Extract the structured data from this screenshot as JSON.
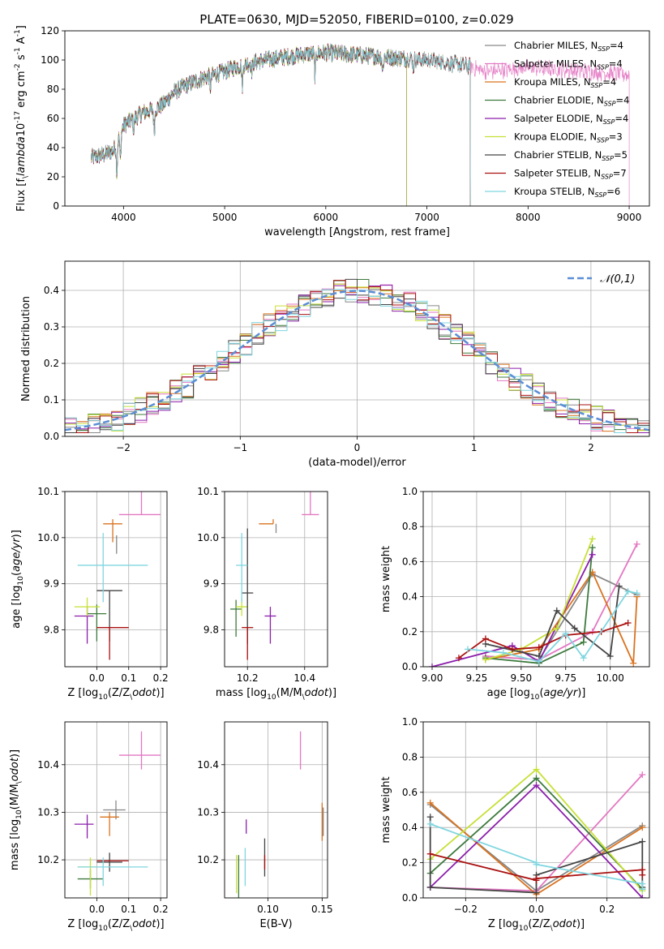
{
  "figure": {
    "title": "PLATE=0630, MJD=52050, FIBERID=0100, z=0.029"
  },
  "series_styles": [
    {
      "name": "Chabrier MILES, N$_{SSP}$=4",
      "base": "Chabrier MILES, N",
      "sub": "SSP",
      "tail": "=4",
      "color": "#888888"
    },
    {
      "name": "Salpeter MILES, N$_{SSP}$=4",
      "base": "Salpeter MILES, N",
      "sub": "SSP",
      "tail": "=4",
      "color": "#e377c2"
    },
    {
      "name": "Kroupa MILES, N$_{SSP}$=4",
      "base": "Kroupa MILES, N",
      "sub": "SSP",
      "tail": "=4",
      "color": "#d9731f"
    },
    {
      "name": "Chabrier ELODIE, N$_{SSP}$=4",
      "base": "Chabrier ELODIE, N",
      "sub": "SSP",
      "tail": "=4",
      "color": "#3d7a3d"
    },
    {
      "name": "Salpeter ELODIE, N$_{SSP}$=4",
      "base": "Salpeter ELODIE, N",
      "sub": "SSP",
      "tail": "=4",
      "color": "#8b1eab"
    },
    {
      "name": "Kroupa ELODIE, N$_{SSP}$=3",
      "base": "Kroupa ELODIE, N",
      "sub": "SSP",
      "tail": "=3",
      "color": "#c7e036"
    },
    {
      "name": "Chabrier STELIB, N$_{SSP}$=5",
      "base": "Chabrier STELIB, N",
      "sub": "SSP",
      "tail": "=5",
      "color": "#444444"
    },
    {
      "name": "Salpeter STELIB, N$_{SSP}$=7",
      "base": "Salpeter STELIB, N",
      "sub": "SSP",
      "tail": "=7",
      "color": "#aa1111"
    },
    {
      "name": "Kroupa STELIB, N$_{SSP}$=6",
      "base": "Kroupa STELIB, N",
      "sub": "SSP",
      "tail": "=6",
      "color": "#7fd6e0"
    }
  ],
  "chart_data": [
    {
      "id": "spectrum",
      "type": "line",
      "title": "PLATE=0630, MJD=52050, FIBERID=0100, z=0.029",
      "xlabel": "wavelength [Angstrom, rest frame]",
      "ylabel": "Flux [f$_\\lambda$10$^{-17}$ erg cm$^{-2}$ s$^{-1}$ A$^{-1}$]",
      "xlim": [
        3420,
        9200
      ],
      "ylim": [
        0,
        120
      ],
      "xticks": [
        4000,
        5000,
        6000,
        7000,
        8000,
        9000
      ],
      "yticks": [
        0,
        20,
        40,
        60,
        80,
        100,
        120
      ],
      "grid": false,
      "legend_placement": "right",
      "continuum": [
        [
          3680,
          33
        ],
        [
          3800,
          35
        ],
        [
          3900,
          38
        ],
        [
          4000,
          55
        ],
        [
          4100,
          60
        ],
        [
          4200,
          64
        ],
        [
          4300,
          66
        ],
        [
          4400,
          70
        ],
        [
          4500,
          78
        ],
        [
          4600,
          82
        ],
        [
          4700,
          85
        ],
        [
          4800,
          88
        ],
        [
          4900,
          90
        ],
        [
          5000,
          92
        ],
        [
          5100,
          95
        ],
        [
          5200,
          97
        ],
        [
          5400,
          100
        ],
        [
          5600,
          102
        ],
        [
          5800,
          104
        ],
        [
          6000,
          105
        ],
        [
          6200,
          104
        ],
        [
          6400,
          103
        ],
        [
          6600,
          102
        ],
        [
          6800,
          101
        ],
        [
          7000,
          100
        ],
        [
          7200,
          98
        ],
        [
          7400,
          96
        ],
        [
          7600,
          92
        ],
        [
          8000,
          95
        ],
        [
          8400,
          93
        ],
        [
          9000,
          90
        ]
      ],
      "absorption_features": [
        [
          3934,
          20
        ],
        [
          3969,
          18
        ],
        [
          4102,
          8
        ],
        [
          4304,
          15
        ],
        [
          4861,
          8
        ],
        [
          5175,
          14
        ],
        [
          5270,
          6
        ],
        [
          5893,
          15
        ],
        [
          6563,
          10
        ],
        [
          6867,
          6
        ]
      ],
      "series_end_wavelength": [
        7430,
        9000,
        7430,
        6800,
        6800,
        6800,
        7430,
        7430,
        7430
      ]
    },
    {
      "id": "residual_hist",
      "type": "bar",
      "xlabel": "(data-model)/error",
      "ylabel": "Normed distribution",
      "xlim": [
        -2.5,
        2.5
      ],
      "ylim": [
        0,
        0.48
      ],
      "xticks": [
        -2,
        -1,
        0,
        1,
        2
      ],
      "yticks": [
        0.0,
        0.1,
        0.2,
        0.3,
        0.4
      ],
      "grid": true,
      "legend_placement": "top-right",
      "legend_label": "𝒩(0,1)",
      "reference_curve": {
        "name": "𝒩(0,1)",
        "mean": 0,
        "sigma": 1,
        "color": "#5b8ed6"
      },
      "bin_width": 0.1
    },
    {
      "id": "age_vs_Z",
      "type": "scatter",
      "xlabel": "Z [log$_{10}$(Z/Z$_\\odot$)]",
      "ylabel": "age  [log$_{10}$($age/yr$)]",
      "xlim": [
        -0.1,
        0.22
      ],
      "ylim": [
        9.72,
        10.1
      ],
      "xticks": [
        0.0,
        0.1,
        0.2
      ],
      "yticks": [
        9.8,
        9.9,
        10.0,
        10.1
      ],
      "grid": true,
      "points": [
        {
          "x": 0.062,
          "y": 9.985,
          "xerr": [
            0.0,
            0.0
          ],
          "yerr": [
            0.02,
            0.02
          ]
        },
        {
          "x": 0.14,
          "y": 10.05,
          "xerr": [
            0.07,
            0.06
          ],
          "yerr": [
            0.0,
            0.05
          ]
        },
        {
          "x": 0.05,
          "y": 10.03,
          "xerr": [
            0.03,
            0.03
          ],
          "yerr": [
            0.04,
            0.01
          ]
        },
        {
          "x": 0.0,
          "y": 9.835,
          "xerr": [
            0.03,
            0.03
          ],
          "yerr": [
            0.06,
            0.02
          ]
        },
        {
          "x": -0.03,
          "y": 9.83,
          "xerr": [
            0.04,
            0.02
          ],
          "yerr": [
            0.06,
            0.02
          ]
        },
        {
          "x": -0.03,
          "y": 9.85,
          "xerr": [
            0.04,
            0.04
          ],
          "yerr": [
            0.02,
            0.02
          ]
        },
        {
          "x": 0.04,
          "y": 9.885,
          "xerr": [
            0.04,
            0.04
          ],
          "yerr": [
            0.11,
            0.0
          ]
        },
        {
          "x": 0.04,
          "y": 9.805,
          "xerr": [
            0.04,
            0.06
          ],
          "yerr": [
            0.07,
            0.0
          ]
        },
        {
          "x": 0.02,
          "y": 9.94,
          "xerr": [
            0.08,
            0.14
          ],
          "yerr": [
            0.08,
            0.07
          ]
        }
      ]
    },
    {
      "id": "age_vs_mass",
      "type": "scatter",
      "xlabel": "mass [log$_{10}$(M/M$_\\odot$)]",
      "ylabel": "",
      "xlim": [
        10.12,
        10.48
      ],
      "ylim": [
        9.72,
        10.1
      ],
      "xticks": [
        10.2,
        10.4
      ],
      "yticks": [
        9.8,
        9.9,
        10.0,
        10.1
      ],
      "grid": true,
      "points": [
        {
          "x": 10.3,
          "y": 10.03,
          "xerr": [
            0.0,
            0.0
          ],
          "yerr": [
            0.02,
            0.0
          ]
        },
        {
          "x": 10.42,
          "y": 10.05,
          "xerr": [
            0.03,
            0.03
          ],
          "yerr": [
            0.0,
            0.05
          ]
        },
        {
          "x": 10.29,
          "y": 10.03,
          "xerr": [
            0.05,
            0.0
          ],
          "yerr": [
            0.0,
            0.01
          ]
        },
        {
          "x": 10.16,
          "y": 9.845,
          "xerr": [
            0.02,
            0.02
          ],
          "yerr": [
            0.06,
            0.02
          ]
        },
        {
          "x": 10.28,
          "y": 9.83,
          "xerr": [
            0.02,
            0.02
          ],
          "yerr": [
            0.06,
            0.02
          ]
        },
        {
          "x": 10.18,
          "y": 9.85,
          "xerr": [
            0.02,
            0.02
          ],
          "yerr": [
            0.02,
            0.02
          ]
        },
        {
          "x": 10.2,
          "y": 9.88,
          "xerr": [
            0.02,
            0.02
          ],
          "yerr": [
            0.11,
            0.14
          ]
        },
        {
          "x": 10.2,
          "y": 9.805,
          "xerr": [
            0.02,
            0.02
          ],
          "yerr": [
            0.07,
            0.0
          ]
        },
        {
          "x": 10.18,
          "y": 9.94,
          "xerr": [
            0.02,
            0.02
          ],
          "yerr": [
            0.08,
            0.07
          ]
        }
      ]
    },
    {
      "id": "weight_vs_age",
      "type": "line",
      "xlabel": "age  [log$_{10}$($age/yr$)]",
      "ylabel": "mass weight",
      "xlim": [
        8.95,
        10.22
      ],
      "ylim": [
        0,
        1.0
      ],
      "xticks": [
        9.0,
        9.25,
        9.5,
        9.75,
        10.0
      ],
      "yticks": [
        0.0,
        0.2,
        0.4,
        0.6,
        0.8,
        1.0
      ],
      "grid": true,
      "series": [
        {
          "name": "Chabrier MILES",
          "x": [
            9.3,
            9.6,
            9.9,
            10.15
          ],
          "y": [
            0.06,
            0.04,
            0.53,
            0.41
          ]
        },
        {
          "name": "Salpeter MILES",
          "x": [
            9.3,
            9.6,
            9.9,
            10.15
          ],
          "y": [
            0.06,
            0.04,
            0.2,
            0.7
          ]
        },
        {
          "name": "Kroupa MILES",
          "x": [
            9.3,
            9.6,
            9.9,
            10.13,
            10.15
          ],
          "y": [
            0.04,
            0.1,
            0.54,
            0.02,
            0.4
          ]
        },
        {
          "name": "Chabrier ELODIE",
          "x": [
            9.3,
            9.6,
            9.85,
            9.9
          ],
          "y": [
            0.05,
            0.02,
            0.14,
            0.68
          ]
        },
        {
          "name": "Salpeter ELODIE",
          "x": [
            9.0,
            9.45,
            9.6,
            9.9
          ],
          "y": [
            0.0,
            0.12,
            0.03,
            0.64
          ]
        },
        {
          "name": "Kroupa ELODIE",
          "x": [
            9.3,
            9.5,
            9.7,
            9.9
          ],
          "y": [
            0.04,
            0.1,
            0.22,
            0.73
          ]
        },
        {
          "name": "Chabrier STELIB",
          "x": [
            9.3,
            9.6,
            9.7,
            9.8,
            10.0,
            10.05
          ],
          "y": [
            0.13,
            0.06,
            0.32,
            0.22,
            0.06,
            0.46
          ]
        },
        {
          "name": "Salpeter STELIB",
          "x": [
            9.15,
            9.3,
            9.45,
            9.6,
            9.75,
            9.95,
            10.1
          ],
          "y": [
            0.05,
            0.16,
            0.1,
            0.11,
            0.18,
            0.2,
            0.25
          ]
        },
        {
          "name": "Kroupa STELIB",
          "x": [
            9.2,
            9.4,
            9.6,
            9.75,
            9.85,
            10.1,
            10.15
          ],
          "y": [
            0.1,
            0.08,
            0.03,
            0.19,
            0.05,
            0.43,
            0.42
          ]
        }
      ]
    },
    {
      "id": "mass_vs_Z",
      "type": "scatter",
      "xlabel": "Z [log$_{10}$(Z/Z$_\\odot$)]",
      "ylabel": "mass [log$_{10}$(M/M$_\\odot$)]",
      "xlim": [
        -0.1,
        0.22
      ],
      "ylim": [
        10.12,
        10.49
      ],
      "xticks": [
        0.0,
        0.1,
        0.2
      ],
      "yticks": [
        10.2,
        10.3,
        10.4
      ],
      "grid": true,
      "points": [
        {
          "x": 0.06,
          "y": 10.305,
          "xerr": [
            0.04,
            0.03
          ],
          "yerr": [
            0.02,
            0.02
          ]
        },
        {
          "x": 0.14,
          "y": 10.42,
          "xerr": [
            0.07,
            0.06
          ],
          "yerr": [
            0.03,
            0.05
          ]
        },
        {
          "x": 0.04,
          "y": 10.29,
          "xerr": [
            0.03,
            0.03
          ],
          "yerr": [
            0.04,
            0.01
          ]
        },
        {
          "x": -0.02,
          "y": 10.16,
          "xerr": [
            0.04,
            0.04
          ],
          "yerr": [
            0.02,
            0.02
          ]
        },
        {
          "x": -0.03,
          "y": 10.275,
          "xerr": [
            0.04,
            0.02
          ],
          "yerr": [
            0.03,
            0.02
          ]
        },
        {
          "x": -0.02,
          "y": 10.185,
          "xerr": [
            0.04,
            0.02
          ],
          "yerr": [
            0.06,
            0.02
          ]
        },
        {
          "x": 0.04,
          "y": 10.195,
          "xerr": [
            0.04,
            0.04
          ],
          "yerr": [
            0.02,
            0.02
          ]
        },
        {
          "x": 0.04,
          "y": 10.198,
          "xerr": [
            0.04,
            0.06
          ],
          "yerr": [
            0.0,
            0.0
          ]
        },
        {
          "x": 0.02,
          "y": 10.185,
          "xerr": [
            0.08,
            0.14
          ],
          "yerr": [
            0.04,
            0.02
          ]
        }
      ]
    },
    {
      "id": "mass_vs_ebv",
      "type": "scatter",
      "xlabel": "E(B-V)",
      "ylabel": "",
      "xlim": [
        0.06,
        0.155
      ],
      "ylim": [
        10.12,
        10.49
      ],
      "xticks": [
        0.1,
        0.15
      ],
      "yticks": [
        10.2,
        10.3,
        10.4
      ],
      "grid": true,
      "points": [
        {
          "x": 0.151,
          "y": 10.28,
          "xerr": [
            0,
            0
          ],
          "yerr": [
            0.03,
            0.03
          ]
        },
        {
          "x": 0.13,
          "y": 10.43,
          "xerr": [
            0,
            0
          ],
          "yerr": [
            0.04,
            0.04
          ]
        },
        {
          "x": 0.15,
          "y": 10.28,
          "xerr": [
            0,
            0
          ],
          "yerr": [
            0.04,
            0.04
          ]
        },
        {
          "x": 0.073,
          "y": 10.16,
          "xerr": [
            0,
            0
          ],
          "yerr": [
            0.05,
            0.05
          ]
        },
        {
          "x": 0.08,
          "y": 10.27,
          "xerr": [
            0,
            0
          ],
          "yerr": [
            0.015,
            0.015
          ]
        },
        {
          "x": 0.071,
          "y": 10.17,
          "xerr": [
            0,
            0
          ],
          "yerr": [
            0.04,
            0.04
          ]
        },
        {
          "x": 0.097,
          "y": 10.205,
          "xerr": [
            0,
            0
          ],
          "yerr": [
            0.04,
            0.04
          ]
        },
        {
          "x": 0.097,
          "y": 10.195,
          "xerr": [
            0,
            0
          ],
          "yerr": [
            0.015,
            0.015
          ]
        },
        {
          "x": 0.079,
          "y": 10.185,
          "xerr": [
            0,
            0
          ],
          "yerr": [
            0.04,
            0.04
          ]
        }
      ]
    },
    {
      "id": "weight_vs_Z",
      "type": "line",
      "xlabel": "Z [log$_{10}$(Z/Z$_\\odot$)]",
      "ylabel": "mass weight",
      "xlim": [
        -0.32,
        0.32
      ],
      "ylim": [
        0,
        1.0
      ],
      "xticks": [
        -0.2,
        0.0,
        0.2
      ],
      "yticks": [
        0.0,
        0.2,
        0.4,
        0.6,
        0.8,
        1.0
      ],
      "grid": true,
      "series": [
        {
          "name": "Chabrier MILES",
          "x": [
            -0.3,
            0.0,
            0.3
          ],
          "y": [
            0.53,
            0.04,
            0.41
          ]
        },
        {
          "name": "Salpeter MILES",
          "x": [
            -0.3,
            0.0,
            0.3
          ],
          "y": [
            0.06,
            0.04,
            0.7
          ]
        },
        {
          "name": "Kroupa MILES",
          "x": [
            -0.3,
            0.0,
            0.3
          ],
          "y": [
            0.54,
            0.02,
            0.4
          ]
        },
        {
          "name": "Chabrier ELODIE",
          "x": [
            -0.3,
            0.0,
            0.3
          ],
          "y": [
            0.14,
            0.68,
            0.05
          ]
        },
        {
          "name": "Salpeter ELODIE",
          "x": [
            -0.3,
            0.0,
            0.3
          ],
          "y": [
            0.06,
            0.64,
            0.0
          ]
        },
        {
          "name": "Kroupa ELODIE",
          "x": [
            -0.3,
            0.0,
            0.3
          ],
          "y": [
            0.22,
            0.73,
            0.04
          ]
        },
        {
          "name": "Chabrier STELIB",
          "x": [
            -0.3,
            -0.3,
            0.0,
            0.0,
            0.3,
            0.3
          ],
          "y": [
            0.46,
            0.06,
            0.03,
            0.13,
            0.32,
            0.06
          ]
        },
        {
          "name": "Salpeter STELIB",
          "x": [
            -0.3,
            0.0,
            0.0,
            0.3,
            0.3
          ],
          "y": [
            0.25,
            0.1,
            0.11,
            0.16,
            0.13
          ]
        },
        {
          "name": "Kroupa STELIB",
          "x": [
            -0.3,
            0.0,
            0.0,
            0.3,
            0.3
          ],
          "y": [
            0.42,
            0.2,
            0.19,
            0.08,
            0.05
          ]
        }
      ]
    }
  ]
}
